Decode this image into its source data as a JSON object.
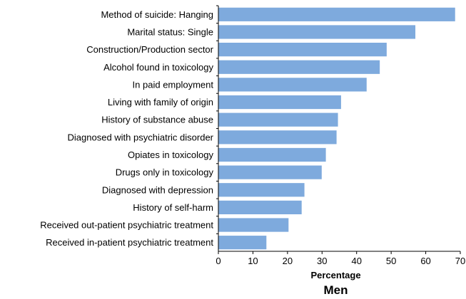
{
  "chart_data": {
    "type": "bar",
    "orientation": "horizontal",
    "title": "Men",
    "xlabel": "Percentage",
    "ylabel": "",
    "xlim": [
      0,
      70
    ],
    "x_ticks": [
      0,
      10,
      20,
      30,
      40,
      50,
      60,
      70
    ],
    "grid": false,
    "legend": "none",
    "bar_color": "#7eaadd",
    "categories": [
      "Method of suicide: Hanging",
      "Marital status: Single",
      "Construction/Production sector",
      "Alcohol found in toxicology",
      "In paid employment",
      "Living with family of origin",
      "History of substance abuse",
      "Diagnosed with psychiatric disorder",
      "Opiates in toxicology",
      "Drugs only in toxicology",
      "Diagnosed with depression",
      "History of self-harm",
      "Received out-patient psychiatric treatment",
      "Received in-patient psychiatric treatment"
    ],
    "values": [
      68.5,
      57,
      48.7,
      46.7,
      42.9,
      35.5,
      34.6,
      34.2,
      31.1,
      29.9,
      24.9,
      24.1,
      20.3,
      13.9
    ]
  }
}
